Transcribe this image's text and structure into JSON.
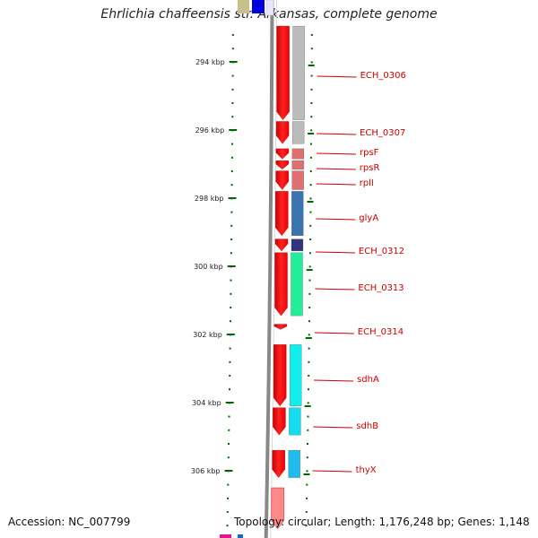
{
  "title": "Ehrlichia chaffeensis str. Arkansas, complete genome",
  "footer": {
    "accession": "Accession: NC_007799",
    "topology": "Topology: circular; Length: 1,176,248 bp; Genes: 1,148"
  },
  "ticks": [
    {
      "label": "294 kbp",
      "kbp": 294
    },
    {
      "label": "296 kbp",
      "kbp": 296
    },
    {
      "label": "298 kbp",
      "kbp": 298
    },
    {
      "label": "300 kbp",
      "kbp": 300
    },
    {
      "label": "302 kbp",
      "kbp": 302
    },
    {
      "label": "304 kbp",
      "kbp": 304
    },
    {
      "label": "306 kbp",
      "kbp": 306
    }
  ],
  "genes": [
    {
      "name": "",
      "start_kbp": 292.5,
      "end_kbp": 292.95,
      "color": "#0000dd"
    },
    {
      "name": "ECH_0306",
      "start_kbp": 292.95,
      "end_kbp": 295.7,
      "color": "#bbbbbb"
    },
    {
      "name": "ECH_0307",
      "start_kbp": 295.75,
      "end_kbp": 296.4,
      "color": "#bbbbbb"
    },
    {
      "name": "rpsF",
      "start_kbp": 296.55,
      "end_kbp": 296.85,
      "color": "#e07070"
    },
    {
      "name": "rpsR",
      "start_kbp": 296.9,
      "end_kbp": 297.15,
      "color": "#e07070"
    },
    {
      "name": "rplI",
      "start_kbp": 297.2,
      "end_kbp": 297.75,
      "color": "#e07070"
    },
    {
      "name": "glyA",
      "start_kbp": 297.8,
      "end_kbp": 299.1,
      "color": "#3a74b0"
    },
    {
      "name": "ECH_0312",
      "start_kbp": 299.2,
      "end_kbp": 299.55,
      "color": "#333380"
    },
    {
      "name": "ECH_0313",
      "start_kbp": 299.6,
      "end_kbp": 301.45,
      "color": "#22ee99"
    },
    {
      "name": "ECH_0314",
      "start_kbp": 301.7,
      "end_kbp": 301.85,
      "color": "#ffffff"
    },
    {
      "name": "sdhA",
      "start_kbp": 302.3,
      "end_kbp": 304.1,
      "color": "#11eeee"
    },
    {
      "name": "sdhB",
      "start_kbp": 304.15,
      "end_kbp": 304.95,
      "color": "#11ddee"
    },
    {
      "name": "thyX",
      "start_kbp": 305.4,
      "end_kbp": 306.2,
      "color": "#22bbee"
    },
    {
      "name": "",
      "start_kbp": 306.5,
      "end_kbp": 307.7,
      "color": "#ffcccc"
    }
  ],
  "colors": {
    "cds_strand": "#ff0000",
    "label_text": "#cc0000",
    "tick_mark": "#006600",
    "backbone": "#888888",
    "top_gene_olive": "#c8c08a"
  }
}
